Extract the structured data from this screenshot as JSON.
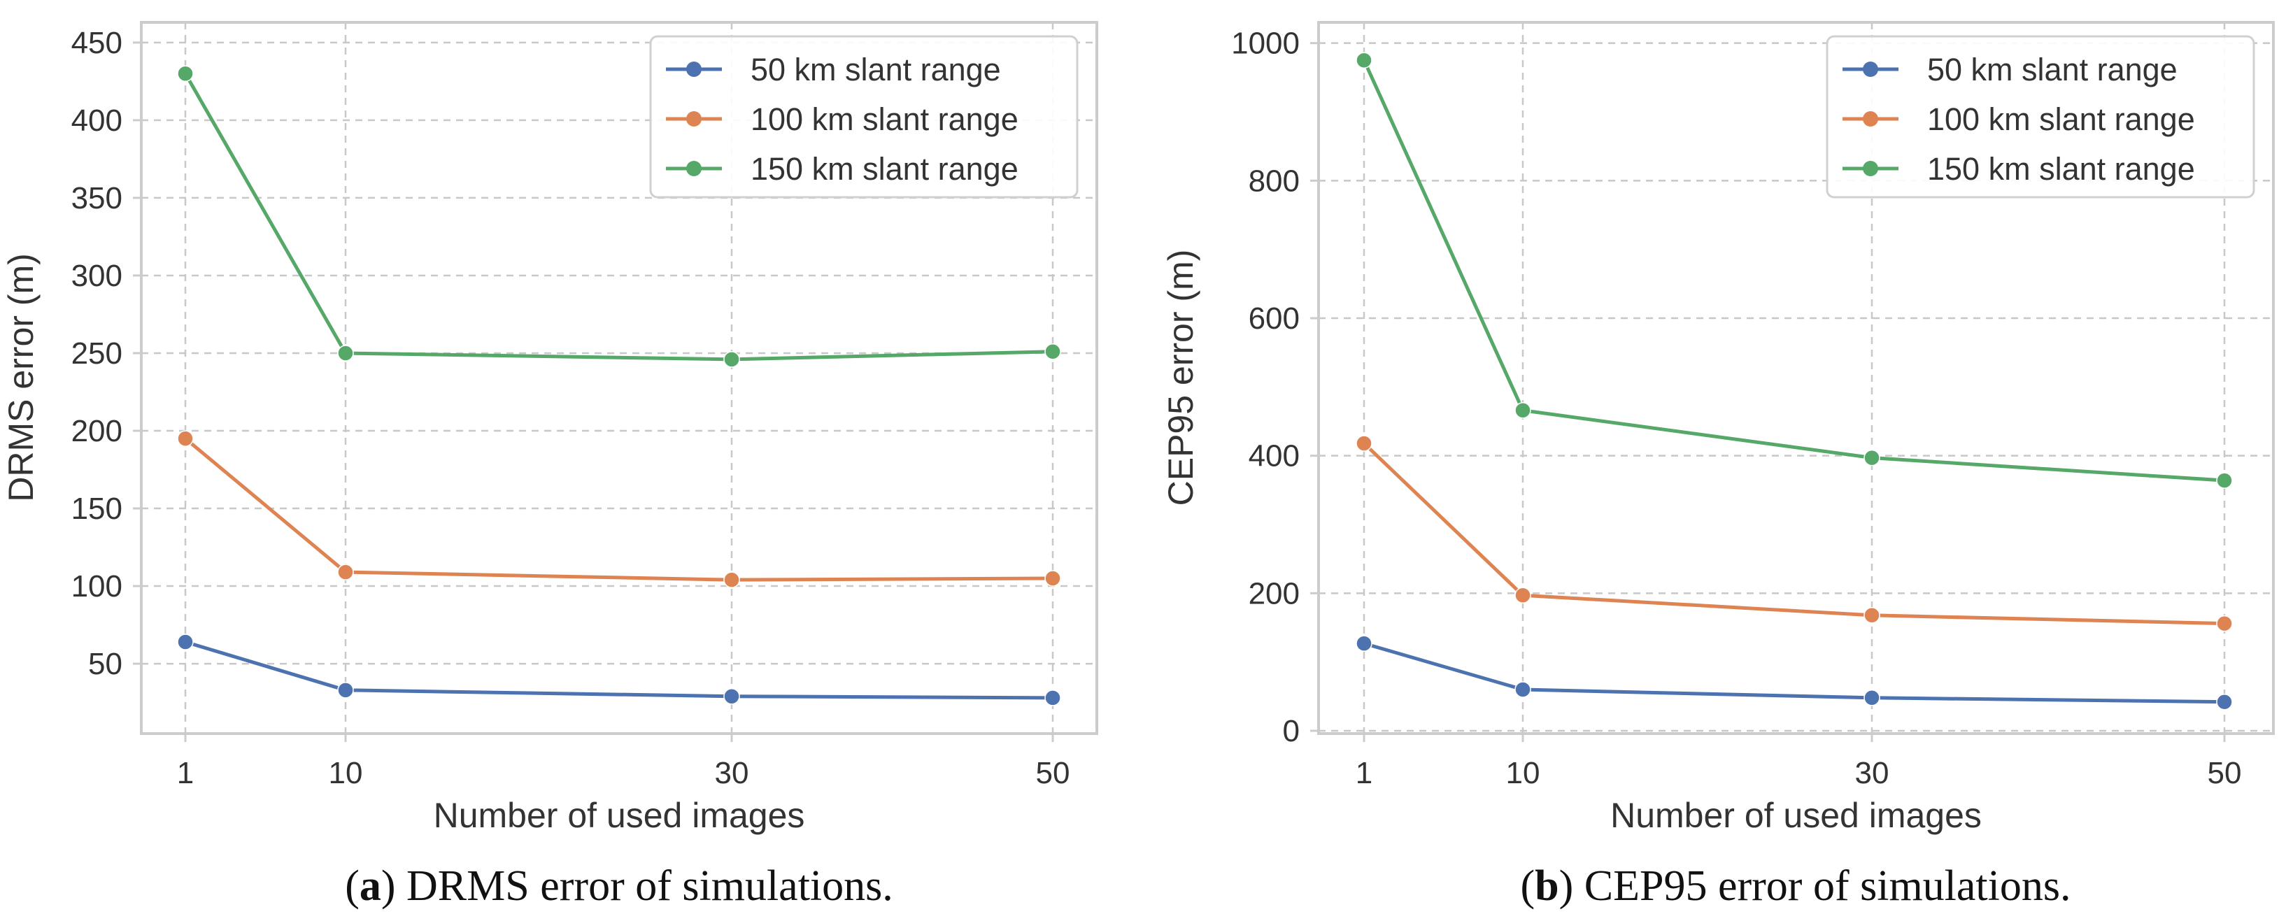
{
  "chart_data": [
    {
      "type": "line",
      "xlabel": "Number of used images",
      "ylabel": "DRMS error (m)",
      "x": [
        1,
        10,
        30,
        50
      ],
      "xticks": [
        "1",
        "10",
        "30",
        "50"
      ],
      "ylim": [
        0,
        450
      ],
      "yticks": [
        "50",
        "100",
        "150",
        "200",
        "250",
        "300",
        "350",
        "400",
        "450"
      ],
      "grid": true,
      "legend": "top-right",
      "series": [
        {
          "name": "50 km slant range",
          "color": "#4c72b0",
          "values": [
            64,
            33,
            29,
            28
          ]
        },
        {
          "name": "100 km slant range",
          "color": "#dd8452",
          "values": [
            195,
            109,
            104,
            105
          ]
        },
        {
          "name": "150 km slant range",
          "color": "#55a868",
          "values": [
            430,
            250,
            246,
            251
          ]
        }
      ],
      "caption_label": "a",
      "caption_text": "DRMS error of simulations."
    },
    {
      "type": "line",
      "xlabel": "Number of used images",
      "ylabel": "CEP95 error (m)",
      "x": [
        1,
        10,
        30,
        50
      ],
      "xticks": [
        "1",
        "10",
        "30",
        "50"
      ],
      "ylim": [
        0,
        1000
      ],
      "yticks": [
        "0",
        "200",
        "400",
        "600",
        "800",
        "1000"
      ],
      "grid": true,
      "legend": "top-right",
      "series": [
        {
          "name": "50 km slant range",
          "color": "#4c72b0",
          "values": [
            127,
            60,
            48,
            42
          ]
        },
        {
          "name": "100 km slant range",
          "color": "#dd8452",
          "values": [
            418,
            197,
            168,
            156
          ]
        },
        {
          "name": "150 km slant range",
          "color": "#55a868",
          "values": [
            975,
            466,
            397,
            364
          ]
        }
      ],
      "caption_label": "b",
      "caption_text": "CEP95 error of simulations."
    }
  ]
}
